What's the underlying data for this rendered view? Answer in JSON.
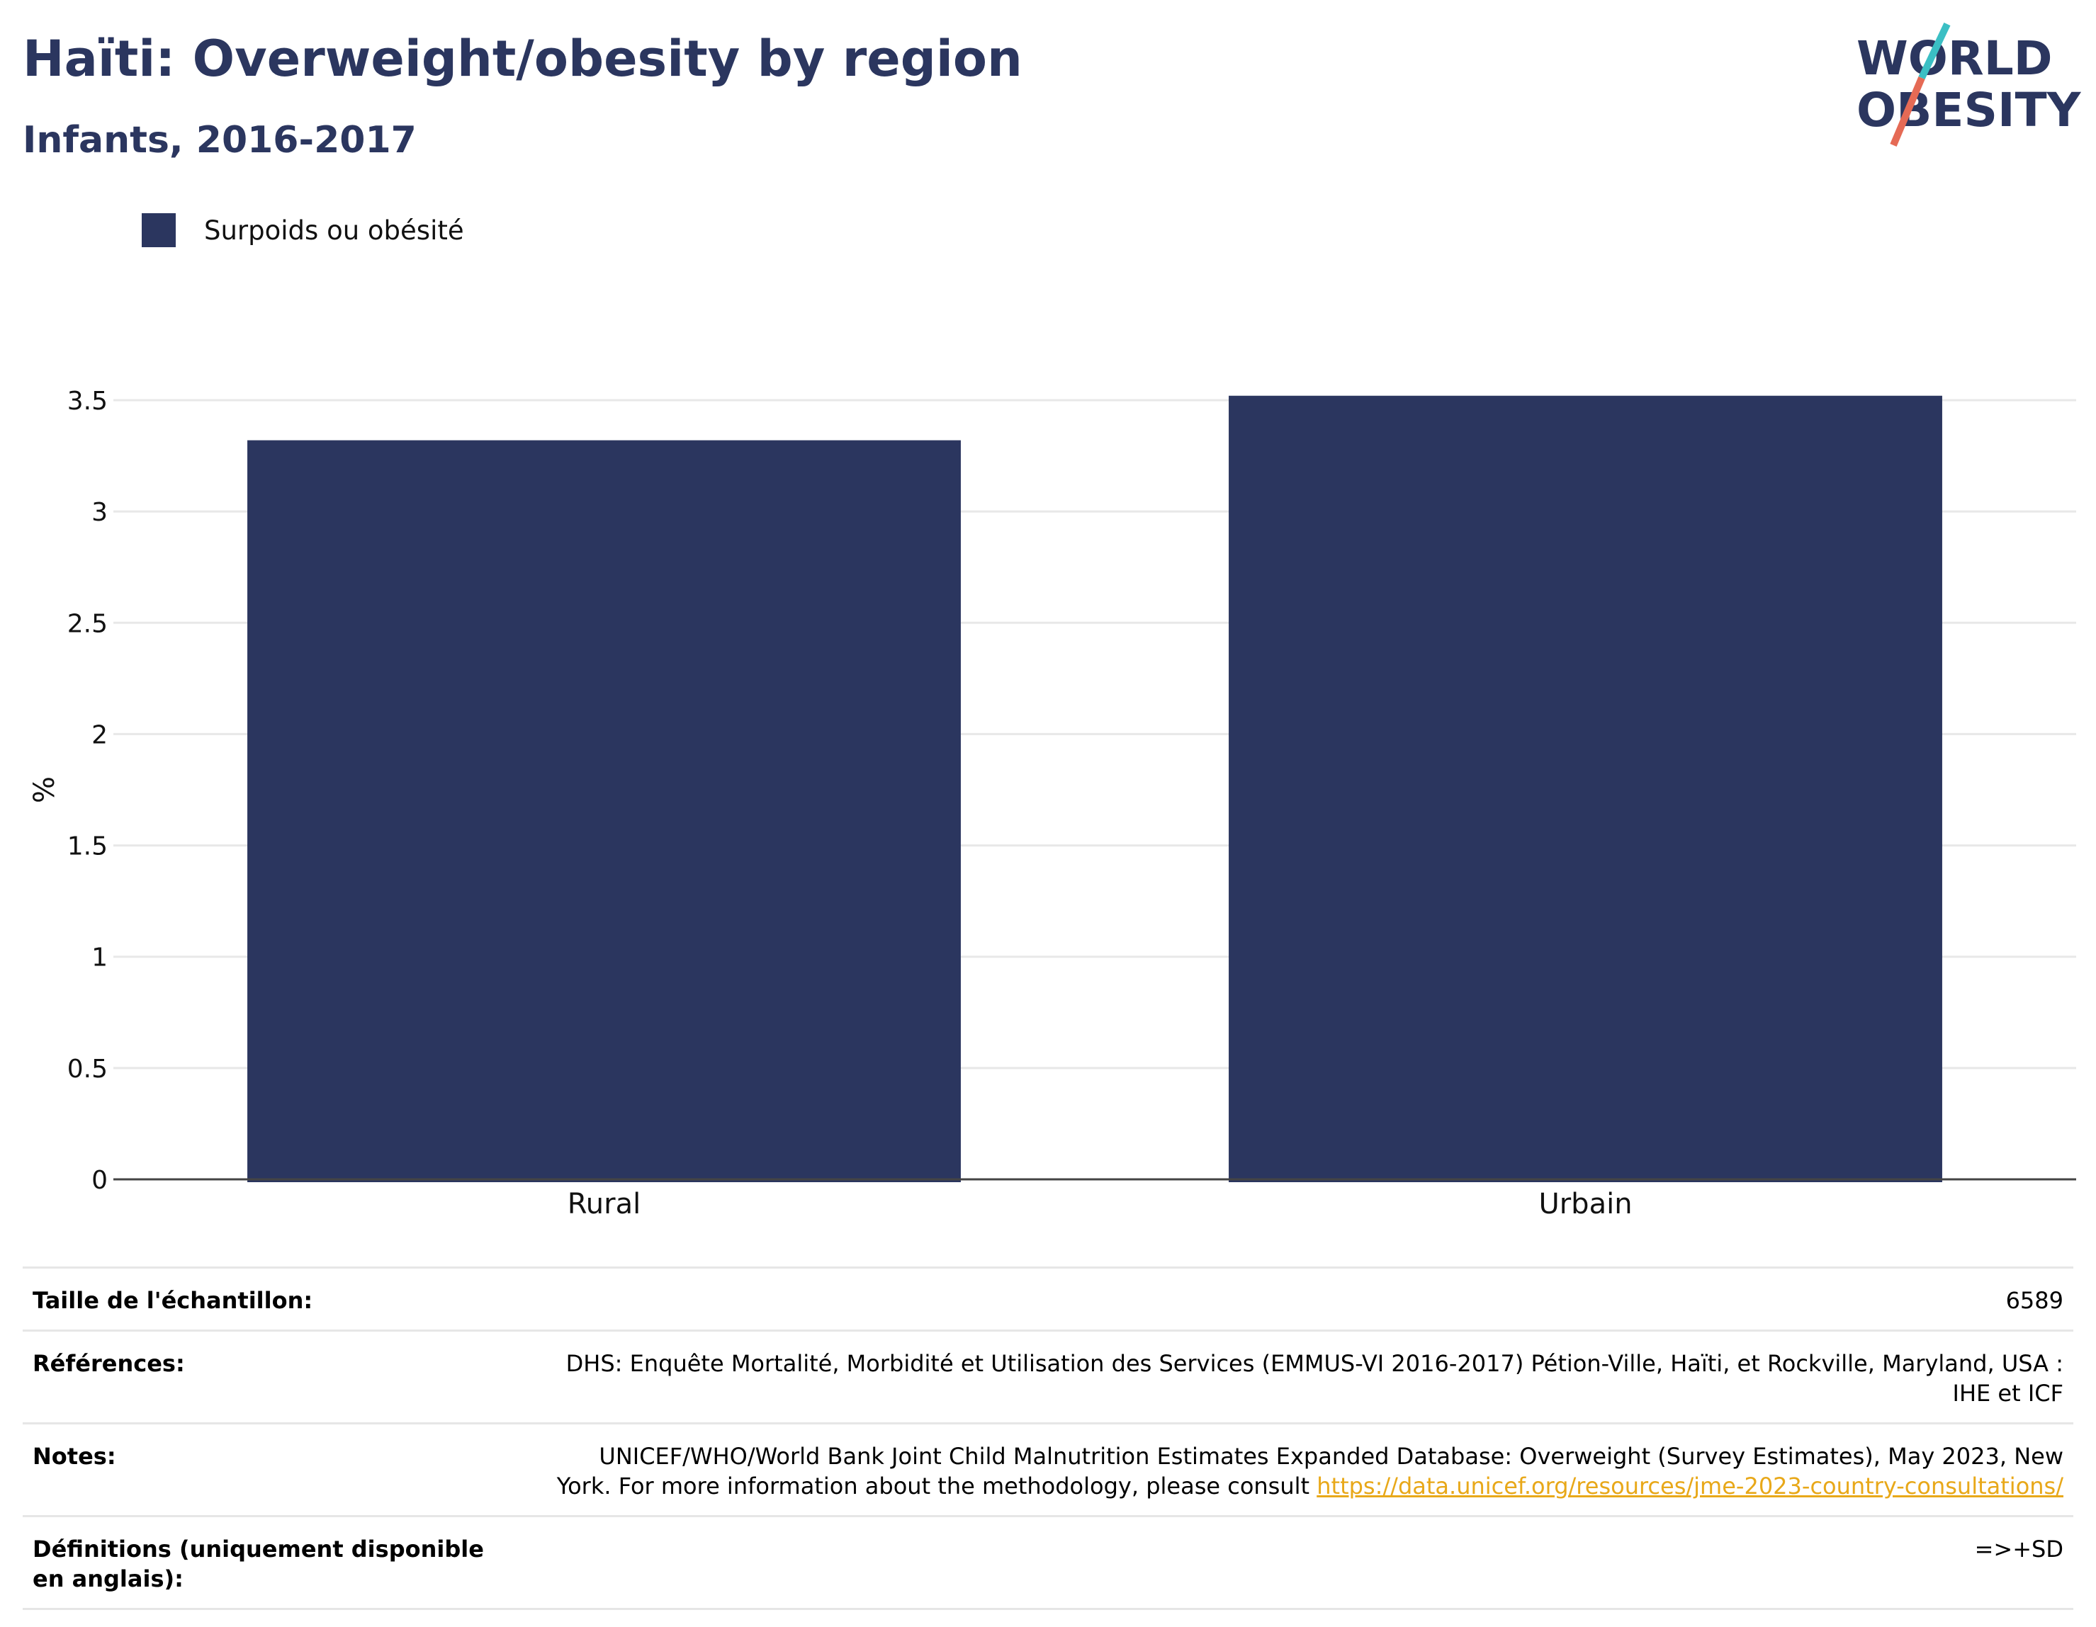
{
  "header": {
    "title": "Haïti: Overweight/obesity by region",
    "subtitle": "Infants, 2016-2017"
  },
  "logo": {
    "line1": "WORLD",
    "line2": "OBESITY",
    "colors": {
      "text": "#2b365f",
      "slash_top": "#3bbfc4",
      "slash_bottom": "#e56a55"
    }
  },
  "chart_data": {
    "type": "bar",
    "categories": [
      "Rural",
      "Urbain"
    ],
    "series": [
      {
        "name": "Surpoids ou obésité",
        "values": [
          3.32,
          3.52
        ],
        "color": "#2b365f"
      }
    ],
    "ylabel": "%",
    "ylim": [
      0,
      3.5
    ],
    "yticks": [
      "0",
      "0.5",
      "1",
      "1.5",
      "2",
      "2.5",
      "3",
      "3.5"
    ],
    "grid": true,
    "legend_position": "top-left"
  },
  "info": {
    "rows": [
      {
        "key": "Taille de l'échantillon:",
        "value": "6589"
      },
      {
        "key": "Références:",
        "value": "DHS: Enquête Mortalité, Morbidité et Utilisation des Services (EMMUS-VI 2016-2017) Pétion-Ville, Haïti, et Rockville, Maryland, USA : IHE et ICF"
      },
      {
        "key": "Notes:",
        "value": "UNICEF/WHO/World Bank Joint Child Malnutrition Estimates Expanded Database: Overweight (Survey Estimates), May 2023, New York. For more information about the methodology, please consult ",
        "link": "https://data.unicef.org/resources/jme-2023-country-consultations/"
      },
      {
        "key": "Définitions (uniquement disponible en anglais):",
        "value": "=>+SD"
      }
    ]
  }
}
